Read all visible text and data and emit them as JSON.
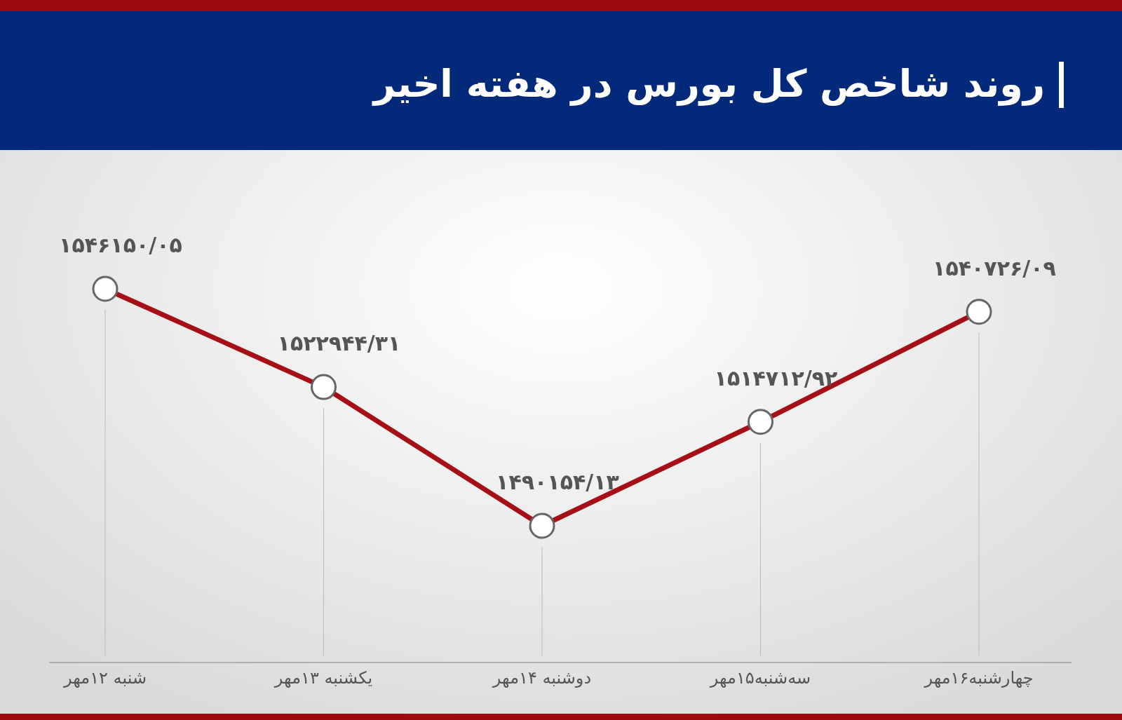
{
  "chart_data": {
    "type": "line",
    "title": "روند شاخص کل بورس در هفته اخیر",
    "categories": [
      "شنبه ۱۲مهر",
      "یکشنبه ۱۳مهر",
      "دوشنبه ۱۴مهر",
      "سه‌شنبه۱۵مهر",
      "چهارشنبه۱۶مهر"
    ],
    "series": [
      {
        "color": "#a50f15",
        "values": [
          1546150.05,
          1522944.31,
          1490154.13,
          1514712.92,
          1540726.09
        ],
        "value_labels": [
          "۱۵۴۶۱۵۰/۰۵",
          "۱۵۲۲۹۴۴/۳۱",
          "۱۴۹۰۱۵۴/۱۳",
          "۱۵۱۴۷۱۲/۹۲",
          "۱۵۴۰۷۲۶/۰۹"
        ]
      }
    ],
    "marker": "circle",
    "line_style": "solid",
    "grid": "x"
  }
}
